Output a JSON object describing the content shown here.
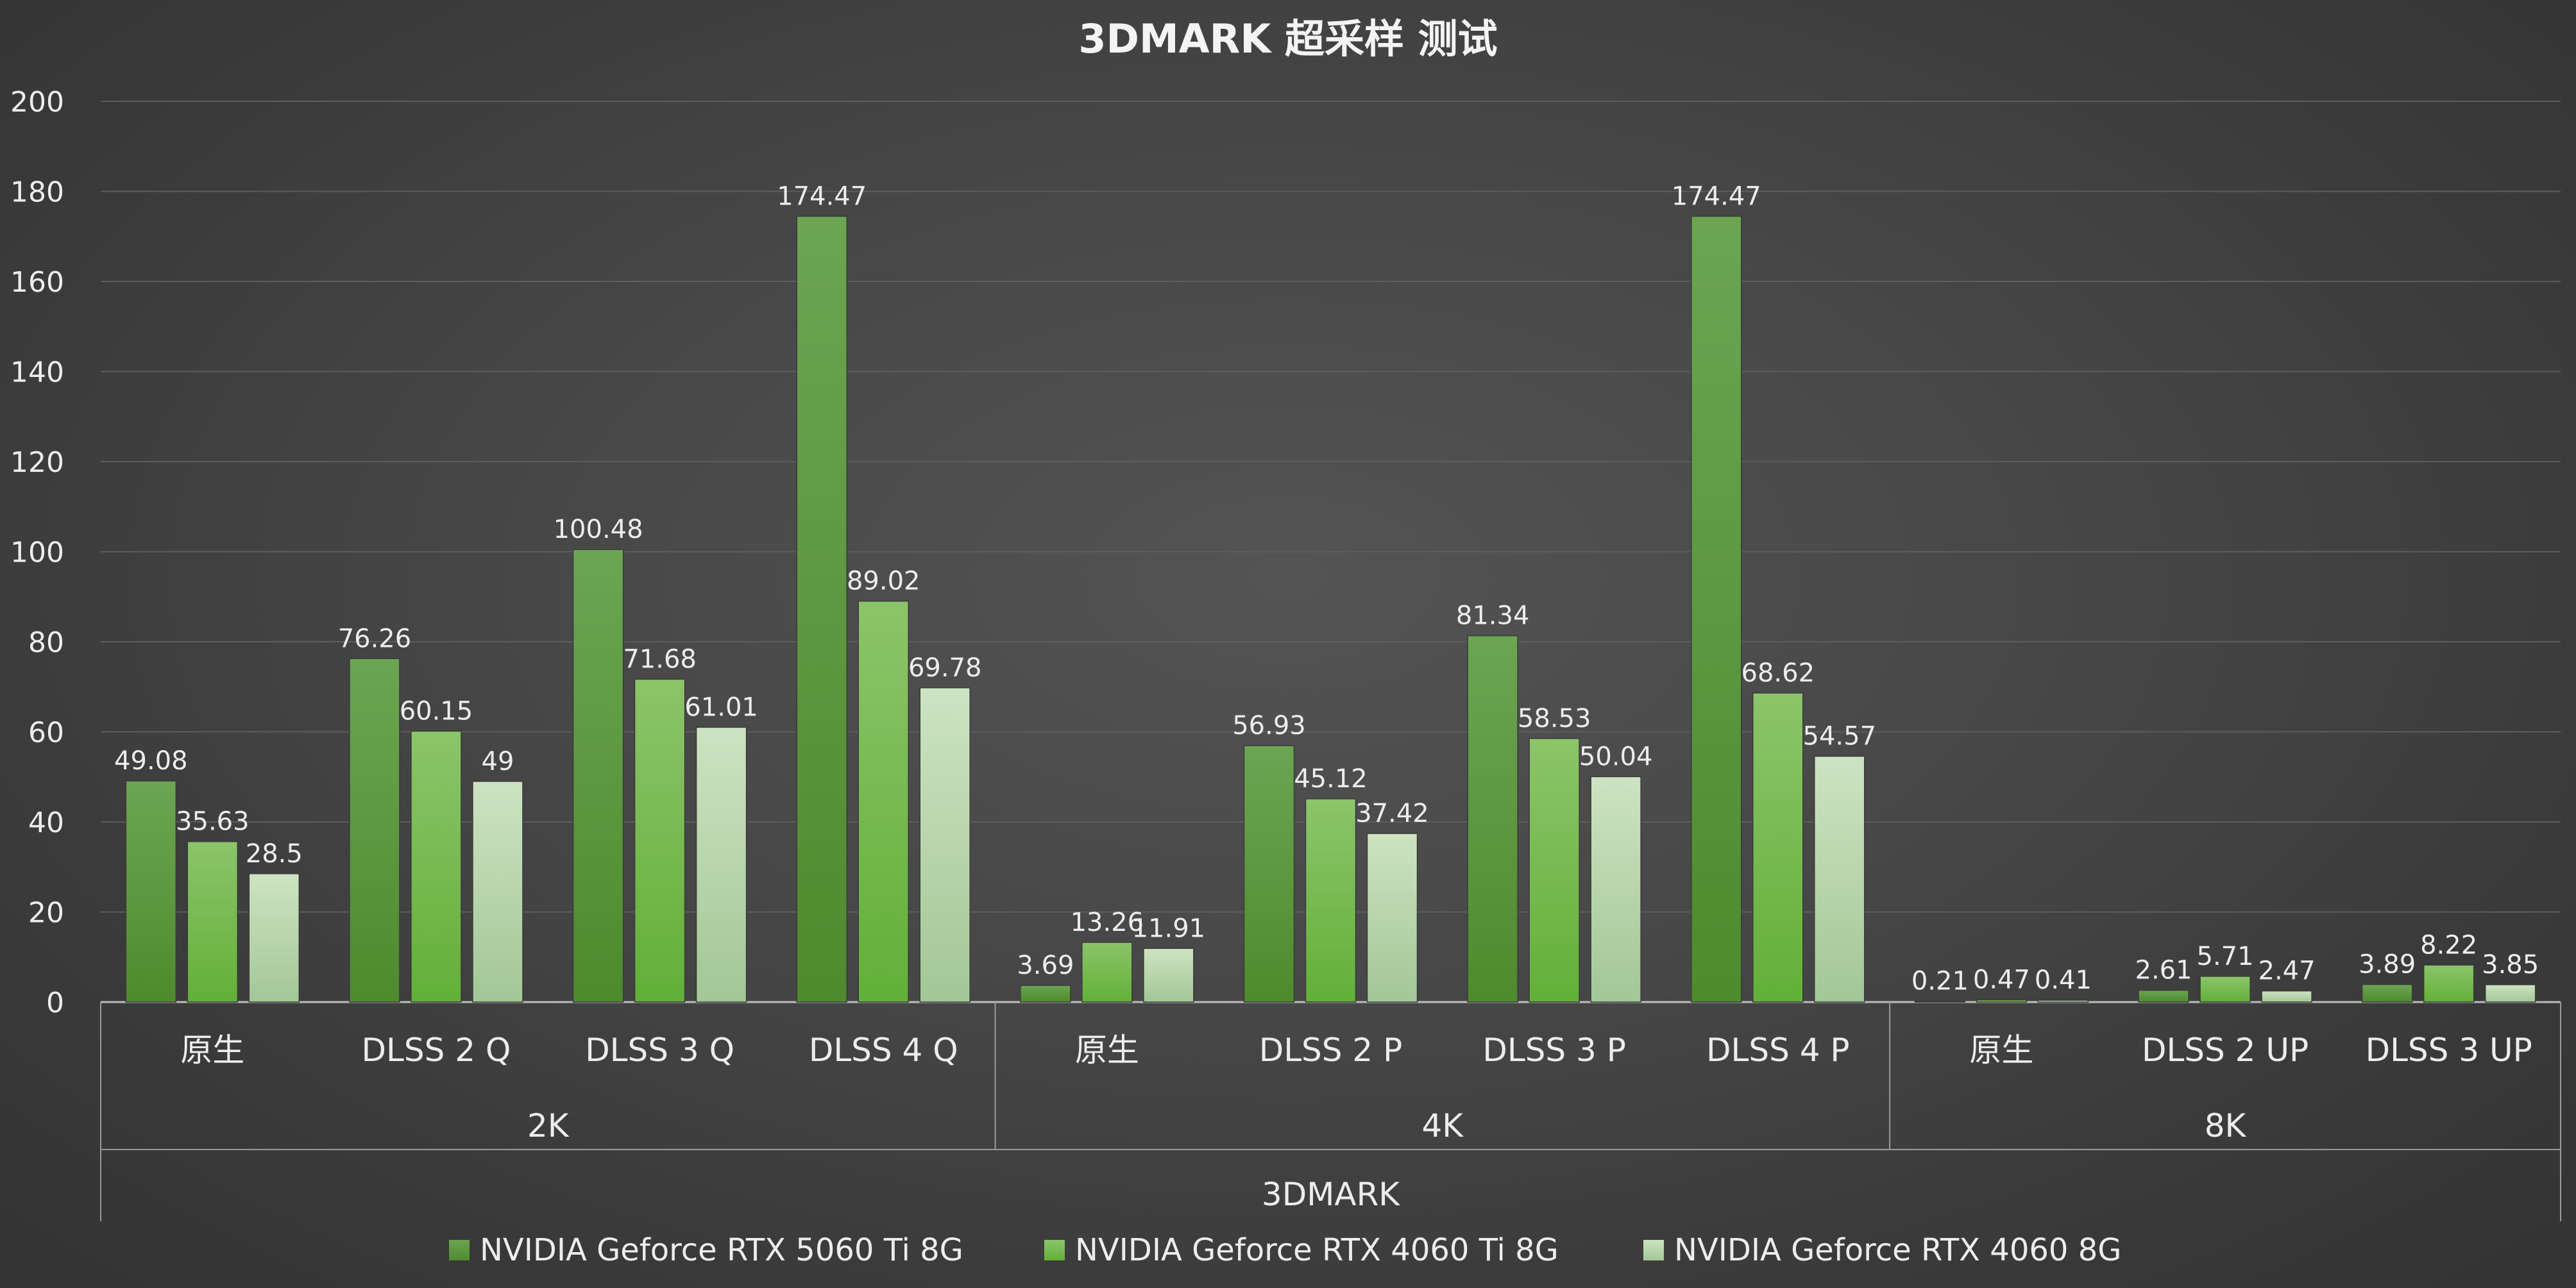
{
  "chart_data": {
    "type": "bar",
    "title": "3DMARK 超采样 测试",
    "top_group": "3DMARK",
    "groups": [
      {
        "name": "2K",
        "categories": [
          "原生",
          "DLSS 2 Q",
          "DLSS 3 Q",
          "DLSS 4 Q"
        ]
      },
      {
        "name": "4K",
        "categories": [
          "原生",
          "DLSS 2 P",
          "DLSS 3 P",
          "DLSS 4 P"
        ]
      },
      {
        "name": "8K",
        "categories": [
          "原生",
          "DLSS 2 UP",
          "DLSS 3 UP"
        ]
      }
    ],
    "series": [
      {
        "name": "NVIDIA Geforce RTX 5060 Ti 8G",
        "color": "#5a9a3c",
        "values": [
          49.08,
          76.26,
          100.48,
          174.47,
          3.69,
          56.93,
          81.34,
          174.47,
          0.21,
          2.61,
          3.89
        ]
      },
      {
        "name": "NVIDIA Geforce RTX 4060 Ti 8G",
        "color": "#72bb48",
        "values": [
          35.63,
          60.15,
          71.68,
          89.02,
          13.26,
          45.12,
          58.53,
          68.62,
          0.47,
          5.71,
          8.22
        ]
      },
      {
        "name": "NVIDIA Geforce RTX 4060 8G",
        "color": "#bcd9b0",
        "values": [
          28.5,
          49,
          61.01,
          69.78,
          11.91,
          37.42,
          50.04,
          54.57,
          0.41,
          2.47,
          3.85
        ]
      }
    ],
    "ylim": [
      0,
      200
    ],
    "yticks": [
      0,
      20,
      40,
      60,
      80,
      100,
      120,
      140,
      160,
      180,
      200
    ],
    "grid": true,
    "legend_position": "bottom"
  }
}
